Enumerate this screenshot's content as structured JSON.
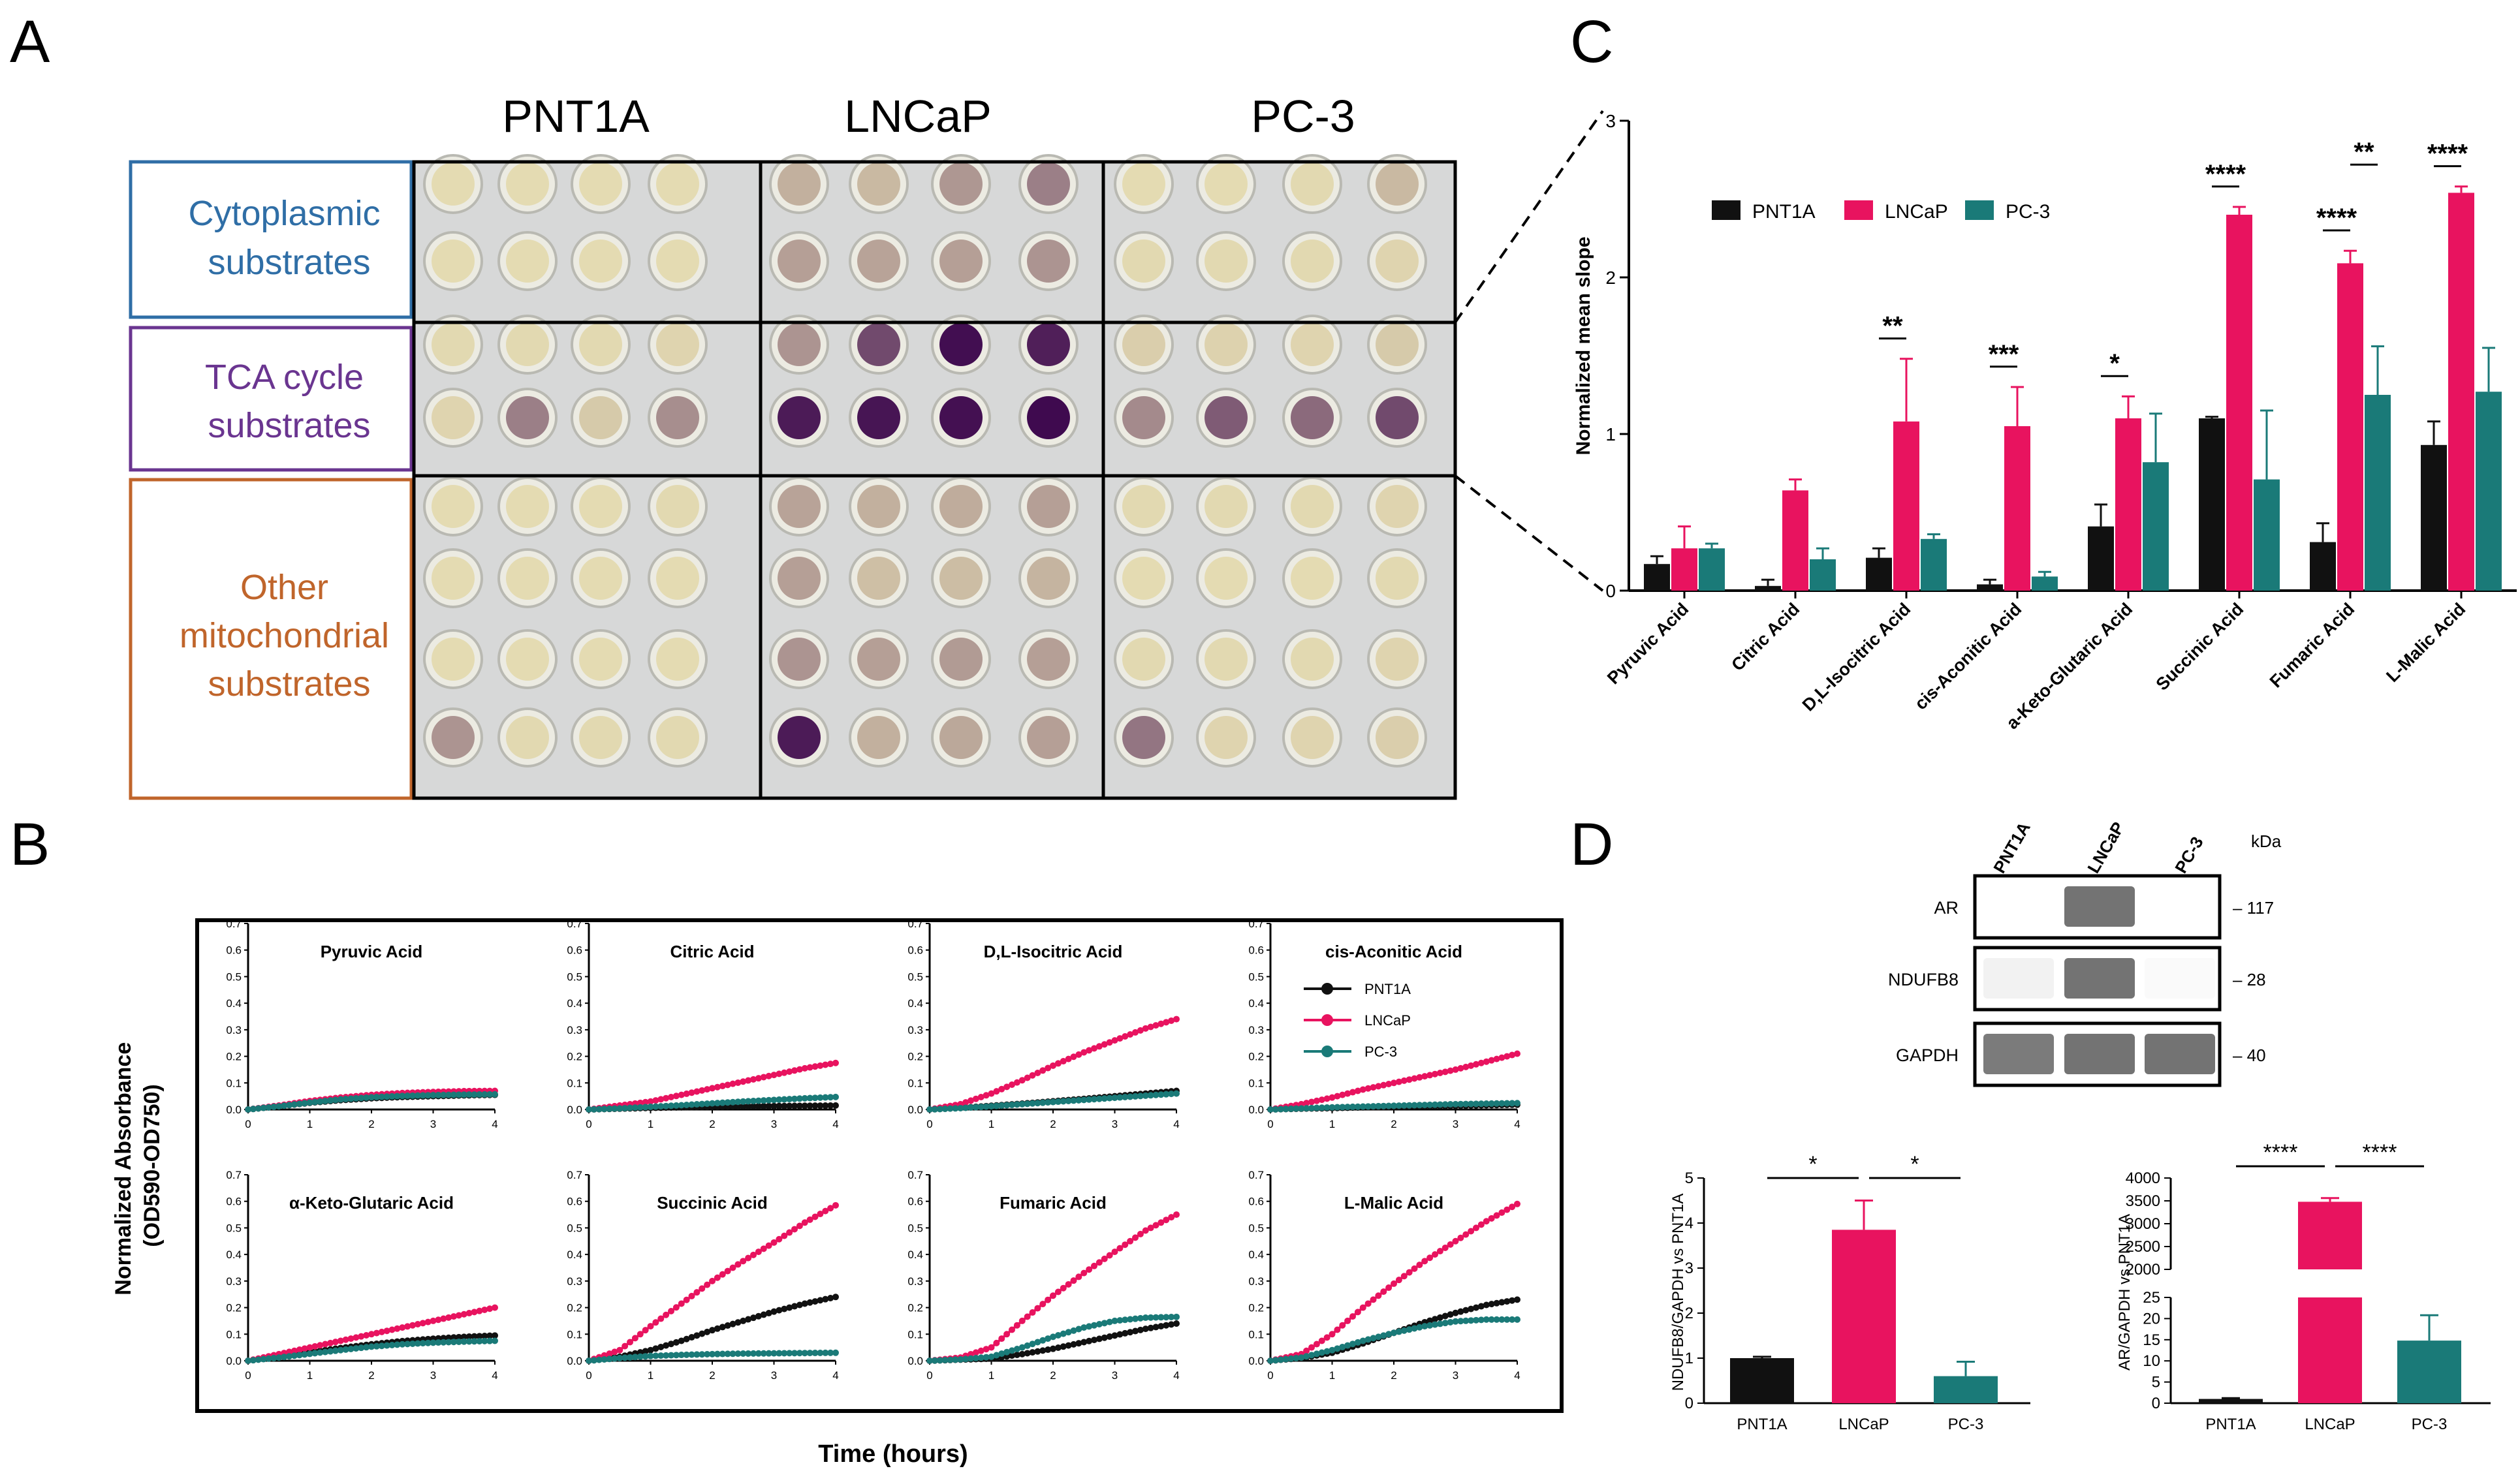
{
  "colors": {
    "PNT1A": "#111111",
    "LNCaP": "#e8135f",
    "PC-3": "#1a7a78",
    "cyto": "#2f6ea6",
    "tca": "#6a3590",
    "other": "#c0652b"
  },
  "panel_labels": [
    "A",
    "B",
    "C",
    "D"
  ],
  "panel_a": {
    "columns": [
      "PNT1A",
      "LNCaP",
      "PC-3"
    ],
    "groups": [
      {
        "lines": [
          "Cytoplasmic",
          "substrates"
        ]
      },
      {
        "lines": [
          "TCA cycle",
          "substrates"
        ]
      },
      {
        "lines": [
          "Other",
          "mitochondrial",
          "substrates"
        ]
      }
    ],
    "well_purple_intensity": [
      [
        0.02,
        0.02,
        0.02,
        0.02,
        0.22,
        0.18,
        0.34,
        0.45,
        0.02,
        0.02,
        0.03,
        0.18
      ],
      [
        0.02,
        0.02,
        0.02,
        0.02,
        0.3,
        0.28,
        0.3,
        0.35,
        0.03,
        0.03,
        0.03,
        0.05
      ],
      [
        0.03,
        0.03,
        0.03,
        0.05,
        0.35,
        0.7,
        0.98,
        0.9,
        0.08,
        0.06,
        0.05,
        0.1
      ],
      [
        0.05,
        0.45,
        0.1,
        0.38,
        0.92,
        0.95,
        0.97,
        1.0,
        0.4,
        0.62,
        0.55,
        0.7
      ],
      [
        0.02,
        0.02,
        0.02,
        0.03,
        0.28,
        0.22,
        0.24,
        0.3,
        0.03,
        0.03,
        0.03,
        0.05
      ],
      [
        0.02,
        0.02,
        0.02,
        0.02,
        0.3,
        0.15,
        0.16,
        0.2,
        0.02,
        0.02,
        0.02,
        0.03
      ],
      [
        0.02,
        0.02,
        0.02,
        0.02,
        0.35,
        0.3,
        0.32,
        0.3,
        0.03,
        0.03,
        0.03,
        0.05
      ],
      [
        0.35,
        0.03,
        0.03,
        0.03,
        0.92,
        0.22,
        0.26,
        0.3,
        0.5,
        0.05,
        0.05,
        0.08
      ]
    ]
  },
  "chart_data": [
    {
      "panel": "B",
      "type": "line",
      "ylabel_lines": [
        "Normalized Absorbance",
        "(OD590-OD750)"
      ],
      "xlabel": "Time (hours)",
      "xlim": [
        0,
        4
      ],
      "ylim": [
        0,
        0.7
      ],
      "xticks": [
        "0",
        "1",
        "2",
        "3",
        "4"
      ],
      "yticks": [
        "0.0",
        "0.1",
        "0.2",
        "0.3",
        "0.4",
        "0.5",
        "0.6",
        "0.7"
      ],
      "legend": [
        "PNT1A",
        "LNCaP",
        "PC-3"
      ],
      "subplots": [
        {
          "title": "Pyruvic Acid",
          "PNT1A": [
            0,
            0.012,
            0.025,
            0.035,
            0.042,
            0.047,
            0.05,
            0.053,
            0.055
          ],
          "LNCaP": [
            0,
            0.015,
            0.032,
            0.045,
            0.055,
            0.062,
            0.066,
            0.069,
            0.07
          ],
          "PC-3": [
            0,
            0.012,
            0.026,
            0.038,
            0.046,
            0.051,
            0.054,
            0.056,
            0.057
          ]
        },
        {
          "title": "Citric Acid",
          "PNT1A": [
            0,
            0.003,
            0.006,
            0.008,
            0.01,
            0.012,
            0.013,
            0.014,
            0.015
          ],
          "LNCaP": [
            0,
            0.015,
            0.03,
            0.055,
            0.08,
            0.105,
            0.13,
            0.155,
            0.175
          ],
          "PC-3": [
            0,
            0.004,
            0.01,
            0.016,
            0.023,
            0.03,
            0.036,
            0.042,
            0.047
          ]
        },
        {
          "title": "D,L-Isocitric Acid",
          "PNT1A": [
            0,
            0.006,
            0.014,
            0.022,
            0.031,
            0.04,
            0.05,
            0.06,
            0.07
          ],
          "LNCaP": [
            0,
            0.02,
            0.06,
            0.11,
            0.165,
            0.215,
            0.26,
            0.305,
            0.34
          ],
          "PC-3": [
            0,
            0.005,
            0.012,
            0.02,
            0.028,
            0.036,
            0.044,
            0.052,
            0.06
          ]
        },
        {
          "title": "cis-Aconitic Acid",
          "PNT1A": [
            0,
            0.003,
            0.005,
            0.008,
            0.01,
            0.012,
            0.014,
            0.016,
            0.018
          ],
          "LNCaP": [
            0,
            0.02,
            0.045,
            0.075,
            0.1,
            0.125,
            0.15,
            0.18,
            0.21
          ],
          "PC-3": [
            0,
            0.004,
            0.008,
            0.011,
            0.014,
            0.017,
            0.02,
            0.022,
            0.024
          ]
        },
        {
          "title": "α-Keto-Glutaric Acid",
          "PNT1A": [
            0,
            0.015,
            0.032,
            0.048,
            0.062,
            0.074,
            0.083,
            0.09,
            0.095
          ],
          "LNCaP": [
            0,
            0.025,
            0.05,
            0.075,
            0.1,
            0.125,
            0.15,
            0.175,
            0.2
          ],
          "PC-3": [
            0,
            0.012,
            0.026,
            0.04,
            0.053,
            0.062,
            0.068,
            0.072,
            0.075
          ]
        },
        {
          "title": "Succinic Acid",
          "PNT1A": [
            0,
            0.015,
            0.04,
            0.075,
            0.115,
            0.15,
            0.185,
            0.215,
            0.24
          ],
          "LNCaP": [
            0,
            0.04,
            0.13,
            0.215,
            0.3,
            0.375,
            0.445,
            0.52,
            0.585
          ],
          "PC-3": [
            0,
            0.01,
            0.018,
            0.022,
            0.025,
            0.027,
            0.028,
            0.029,
            0.03
          ]
        },
        {
          "title": "Fumaric Acid",
          "PNT1A": [
            0,
            0.004,
            0.008,
            0.025,
            0.045,
            0.07,
            0.095,
            0.12,
            0.14
          ],
          "LNCaP": [
            0,
            0.012,
            0.05,
            0.15,
            0.245,
            0.33,
            0.41,
            0.49,
            0.55
          ],
          "PC-3": [
            0,
            0.005,
            0.015,
            0.05,
            0.09,
            0.125,
            0.15,
            0.162,
            0.165
          ]
        },
        {
          "title": "L-Malic Acid",
          "PNT1A": [
            0,
            0.01,
            0.03,
            0.065,
            0.105,
            0.145,
            0.18,
            0.21,
            0.23
          ],
          "LNCaP": [
            0,
            0.025,
            0.1,
            0.2,
            0.29,
            0.375,
            0.45,
            0.525,
            0.59
          ],
          "PC-3": [
            0,
            0.012,
            0.04,
            0.075,
            0.105,
            0.13,
            0.148,
            0.155,
            0.155
          ]
        }
      ]
    },
    {
      "panel": "C",
      "type": "bar",
      "ylabel": "Normalized mean slope",
      "ylim": [
        0,
        3
      ],
      "yticks": [
        "0",
        "1",
        "2",
        "3"
      ],
      "categories": [
        "Pyruvic Acid",
        "Citric Acid",
        "D,L-Isocitric Acid",
        "cis-Aconitic Acid",
        "a-Keto-Glutaric Acid",
        "Succinic Acid",
        "Fumaric Acid",
        "L-Malic Acid"
      ],
      "series": [
        {
          "name": "PNT1A",
          "values": [
            0.17,
            0.03,
            0.21,
            0.04,
            0.41,
            1.1,
            0.31,
            0.93
          ],
          "errors": [
            0.05,
            0.04,
            0.06,
            0.03,
            0.14,
            0.01,
            0.12,
            0.15
          ]
        },
        {
          "name": "LNCaP",
          "values": [
            0.27,
            0.64,
            1.08,
            1.05,
            1.1,
            2.4,
            2.09,
            2.54
          ],
          "errors": [
            0.14,
            0.07,
            0.4,
            0.25,
            0.14,
            0.05,
            0.08,
            0.04
          ]
        },
        {
          "name": "PC-3",
          "values": [
            0.27,
            0.2,
            0.33,
            0.09,
            0.82,
            0.71,
            1.25,
            1.27
          ],
          "errors": [
            0.03,
            0.07,
            0.03,
            0.03,
            0.31,
            0.44,
            0.31,
            0.28
          ]
        }
      ],
      "significance": [
        {
          "category": "D,L-Isocitric Acid",
          "label": "**"
        },
        {
          "category": "cis-Aconitic Acid",
          "label": "***"
        },
        {
          "category": "a-Keto-Glutaric Acid",
          "label": "*"
        },
        {
          "category": "Succinic Acid",
          "label": "****"
        },
        {
          "category": "Fumaric Acid",
          "label": "****"
        },
        {
          "category": "Fumaric Acid",
          "label": "**"
        },
        {
          "category": "L-Malic Acid",
          "label": "****"
        }
      ]
    },
    {
      "panel": "D-blot",
      "type": "table",
      "lanes": [
        "PNT1A",
        "LNCaP",
        "PC-3"
      ],
      "units": "kDa",
      "proteins": [
        {
          "name": "AR",
          "kda": "– 117",
          "intensity": [
            0.0,
            0.85,
            0.0
          ]
        },
        {
          "name": "NDUFB8",
          "kda": "– 28",
          "intensity": [
            0.08,
            0.85,
            0.03
          ]
        },
        {
          "name": "GAPDH",
          "kda": "– 40",
          "intensity": [
            0.8,
            0.85,
            0.85
          ]
        }
      ]
    },
    {
      "panel": "D-left",
      "type": "bar",
      "ylabel": "NDUFB8/GAPDH vs PNT1A",
      "ylim": [
        0,
        5
      ],
      "yticks": [
        "0",
        "1",
        "2",
        "3",
        "4",
        "5"
      ],
      "categories": [
        "PNT1A",
        "LNCaP",
        "PC-3"
      ],
      "values": [
        1.0,
        3.85,
        0.6
      ],
      "errors": [
        0.03,
        0.65,
        0.32
      ],
      "significance": [
        {
          "pair": [
            "PNT1A",
            "LNCaP"
          ],
          "label": "*"
        },
        {
          "pair": [
            "LNCaP",
            "PC-3"
          ],
          "label": "*"
        }
      ]
    },
    {
      "panel": "D-right",
      "type": "bar",
      "ylabel": "AR/GAPDH vs PNT1A",
      "axis_break": true,
      "lower_ylim": [
        0,
        25
      ],
      "lower_yticks": [
        "0",
        "5",
        "10",
        "15",
        "20",
        "25"
      ],
      "upper_ylim": [
        2000,
        4000
      ],
      "upper_yticks": [
        "2000",
        "2500",
        "3000",
        "3500",
        "4000"
      ],
      "categories": [
        "PNT1A",
        "LNCaP",
        "PC-3"
      ],
      "values": [
        1.0,
        3480,
        14.8
      ],
      "errors": [
        0.2,
        80,
        6.0
      ],
      "significance": [
        {
          "pair": [
            "PNT1A",
            "LNCaP"
          ],
          "label": "****"
        },
        {
          "pair": [
            "LNCaP",
            "PC-3"
          ],
          "label": "****"
        }
      ]
    }
  ]
}
